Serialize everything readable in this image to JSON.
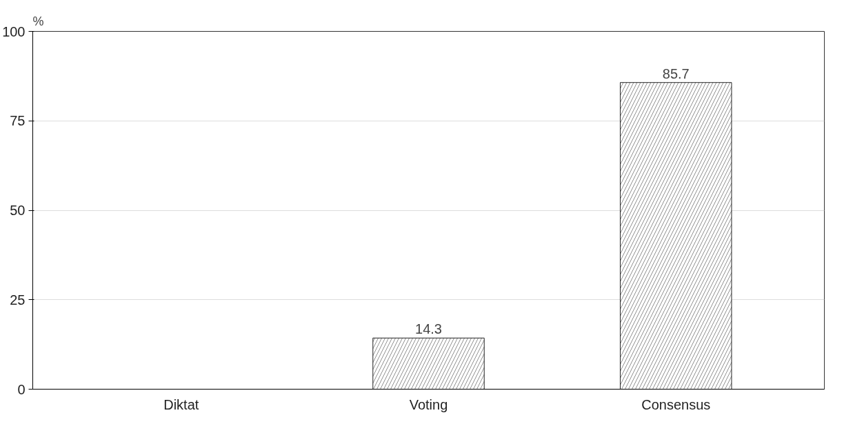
{
  "chart_data": {
    "type": "bar",
    "ylabel": "%",
    "categories": [
      "Diktat",
      "Voting",
      "Consensus"
    ],
    "values": [
      0,
      14.3,
      85.7
    ],
    "value_labels": [
      null,
      "14.3",
      "85.7"
    ],
    "color": "#ffffff",
    "ylim": [
      0,
      100
    ],
    "yticks": [
      0,
      25,
      50,
      75,
      100
    ],
    "grid": "y"
  }
}
